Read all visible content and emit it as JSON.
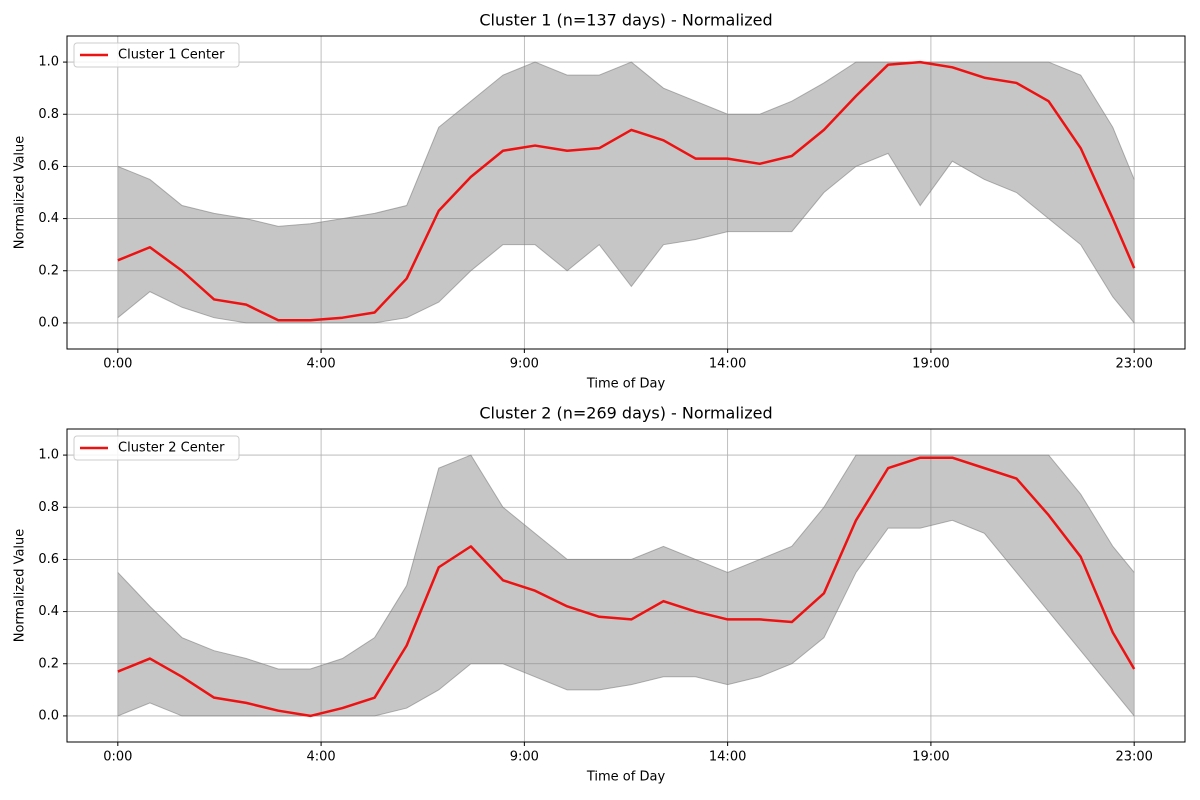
{
  "chart_data": [
    {
      "type": "line",
      "title": "Cluster 1 (n=137 days) - Normalized",
      "xlabel": "Time of Day",
      "ylabel": "Normalized Value",
      "x": [
        0,
        3,
        6,
        9,
        12,
        15,
        18,
        21,
        24,
        27,
        30,
        33,
        36,
        39,
        42,
        45,
        48,
        51,
        54,
        57,
        60,
        63,
        66,
        69,
        72,
        75,
        78,
        81,
        84,
        87,
        90,
        93,
        95
      ],
      "xlim": [
        -4.75,
        99.75
      ],
      "xticks": [
        {
          "value": 0,
          "label": "0:00"
        },
        {
          "value": 19,
          "label": "4:00"
        },
        {
          "value": 38,
          "label": "9:00"
        },
        {
          "value": 57,
          "label": "14:00"
        },
        {
          "value": 76,
          "label": "19:00"
        },
        {
          "value": 95,
          "label": "23:00"
        }
      ],
      "ylim": [
        -0.1,
        1.1
      ],
      "yticks": [
        {
          "value": 0,
          "label": "0.0"
        },
        {
          "value": 0.2,
          "label": "0.2"
        },
        {
          "value": 0.4,
          "label": "0.4"
        },
        {
          "value": 0.6,
          "label": "0.6"
        },
        {
          "value": 0.8,
          "label": "0.8"
        },
        {
          "value": 1,
          "label": "1.0"
        }
      ],
      "grid": true,
      "legend": "upper-left",
      "series": [
        {
          "name": "Cluster 1 Center",
          "color": "#ee1111",
          "values": [
            0.24,
            0.29,
            0.2,
            0.09,
            0.07,
            0.01,
            0.01,
            0.02,
            0.04,
            0.17,
            0.43,
            0.56,
            0.66,
            0.68,
            0.66,
            0.67,
            0.74,
            0.7,
            0.63,
            0.63,
            0.61,
            0.64,
            0.74,
            0.87,
            0.99,
            1.0,
            0.98,
            0.94,
            0.92,
            0.85,
            0.67,
            0.4,
            0.21
          ]
        }
      ],
      "band": {
        "color": "#808080",
        "upper": [
          0.6,
          0.55,
          0.45,
          0.42,
          0.4,
          0.37,
          0.38,
          0.4,
          0.42,
          0.45,
          0.75,
          0.85,
          0.95,
          1.0,
          0.95,
          0.95,
          1.0,
          0.9,
          0.85,
          0.8,
          0.8,
          0.85,
          0.92,
          1.0,
          1.0,
          1.0,
          1.0,
          1.0,
          1.0,
          1.0,
          0.95,
          0.75,
          0.55
        ],
        "lower": [
          0.02,
          0.12,
          0.06,
          0.02,
          0.0,
          0.0,
          0.0,
          0.0,
          0.0,
          0.02,
          0.08,
          0.2,
          0.3,
          0.3,
          0.2,
          0.3,
          0.14,
          0.3,
          0.32,
          0.35,
          0.35,
          0.35,
          0.5,
          0.6,
          0.65,
          0.45,
          0.62,
          0.55,
          0.5,
          0.4,
          0.3,
          0.1,
          0.0
        ]
      }
    },
    {
      "type": "line",
      "title": "Cluster 2 (n=269 days) - Normalized",
      "xlabel": "Time of Day",
      "ylabel": "Normalized Value",
      "x": [
        0,
        3,
        6,
        9,
        12,
        15,
        18,
        21,
        24,
        27,
        30,
        33,
        36,
        39,
        42,
        45,
        48,
        51,
        54,
        57,
        60,
        63,
        66,
        69,
        72,
        75,
        78,
        81,
        84,
        87,
        90,
        93,
        95
      ],
      "xlim": [
        -4.75,
        99.75
      ],
      "xticks": [
        {
          "value": 0,
          "label": "0:00"
        },
        {
          "value": 19,
          "label": "4:00"
        },
        {
          "value": 38,
          "label": "9:00"
        },
        {
          "value": 57,
          "label": "14:00"
        },
        {
          "value": 76,
          "label": "19:00"
        },
        {
          "value": 95,
          "label": "23:00"
        }
      ],
      "ylim": [
        -0.1,
        1.1
      ],
      "yticks": [
        {
          "value": 0,
          "label": "0.0"
        },
        {
          "value": 0.2,
          "label": "0.2"
        },
        {
          "value": 0.4,
          "label": "0.4"
        },
        {
          "value": 0.6,
          "label": "0.6"
        },
        {
          "value": 0.8,
          "label": "0.8"
        },
        {
          "value": 1,
          "label": "1.0"
        }
      ],
      "grid": true,
      "legend": "upper-left",
      "series": [
        {
          "name": "Cluster 2 Center",
          "color": "#ee1111",
          "values": [
            0.17,
            0.22,
            0.15,
            0.07,
            0.05,
            0.02,
            0.0,
            0.03,
            0.07,
            0.27,
            0.57,
            0.65,
            0.52,
            0.48,
            0.42,
            0.38,
            0.37,
            0.44,
            0.4,
            0.37,
            0.37,
            0.36,
            0.47,
            0.75,
            0.95,
            0.99,
            0.99,
            0.95,
            0.91,
            0.77,
            0.61,
            0.32,
            0.18
          ]
        }
      ],
      "band": {
        "color": "#808080",
        "upper": [
          0.55,
          0.42,
          0.3,
          0.25,
          0.22,
          0.18,
          0.18,
          0.22,
          0.3,
          0.5,
          0.95,
          1.0,
          0.8,
          0.7,
          0.6,
          0.6,
          0.6,
          0.65,
          0.6,
          0.55,
          0.6,
          0.65,
          0.8,
          1.0,
          1.0,
          1.0,
          1.0,
          1.0,
          1.0,
          1.0,
          0.85,
          0.65,
          0.55
        ],
        "lower": [
          0.0,
          0.05,
          0.0,
          0.0,
          0.0,
          0.0,
          0.0,
          0.0,
          0.0,
          0.03,
          0.1,
          0.2,
          0.2,
          0.15,
          0.1,
          0.1,
          0.12,
          0.15,
          0.15,
          0.12,
          0.15,
          0.2,
          0.3,
          0.55,
          0.72,
          0.72,
          0.75,
          0.7,
          0.55,
          0.4,
          0.25,
          0.1,
          0.0
        ]
      }
    }
  ]
}
